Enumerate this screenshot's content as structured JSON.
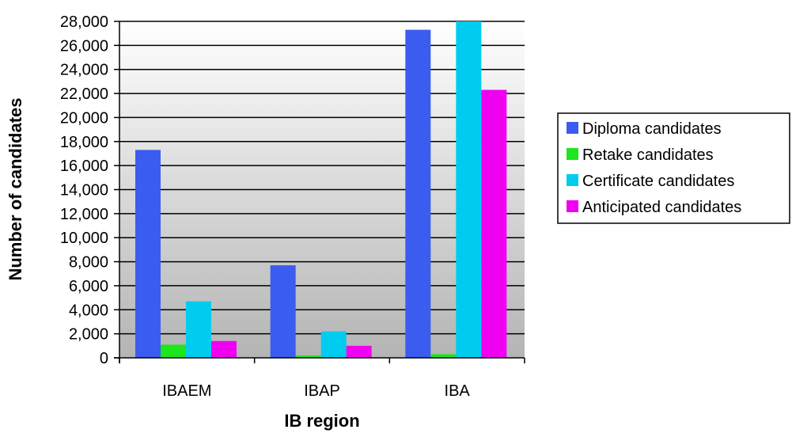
{
  "chart_data": {
    "type": "bar",
    "title": "",
    "xlabel": "IB region",
    "ylabel": "Number of candidates",
    "categories": [
      "IBAEM",
      "IBAP",
      "IBA"
    ],
    "ylim": [
      0,
      28000
    ],
    "ytick_step": 2000,
    "ytick_labels": [
      "0",
      "2,000",
      "4,000",
      "6,000",
      "8,000",
      "10,000",
      "12,000",
      "14,000",
      "16,000",
      "18,000",
      "20,000",
      "22,000",
      "24,000",
      "26,000",
      "28,000"
    ],
    "grid": true,
    "legend_position": "right",
    "series": [
      {
        "name": "Diploma candidates",
        "color": "#3b5cf0",
        "values": [
          17300,
          7700,
          27300
        ]
      },
      {
        "name": "Retake candidates",
        "color": "#1ee61e",
        "values": [
          1100,
          200,
          300
        ]
      },
      {
        "name": "Certificate candidates",
        "color": "#00ccf0",
        "values": [
          4700,
          2200,
          28000
        ]
      },
      {
        "name": "Anticipated candidates",
        "color": "#f000f0",
        "values": [
          1400,
          1000,
          22300
        ]
      }
    ]
  }
}
